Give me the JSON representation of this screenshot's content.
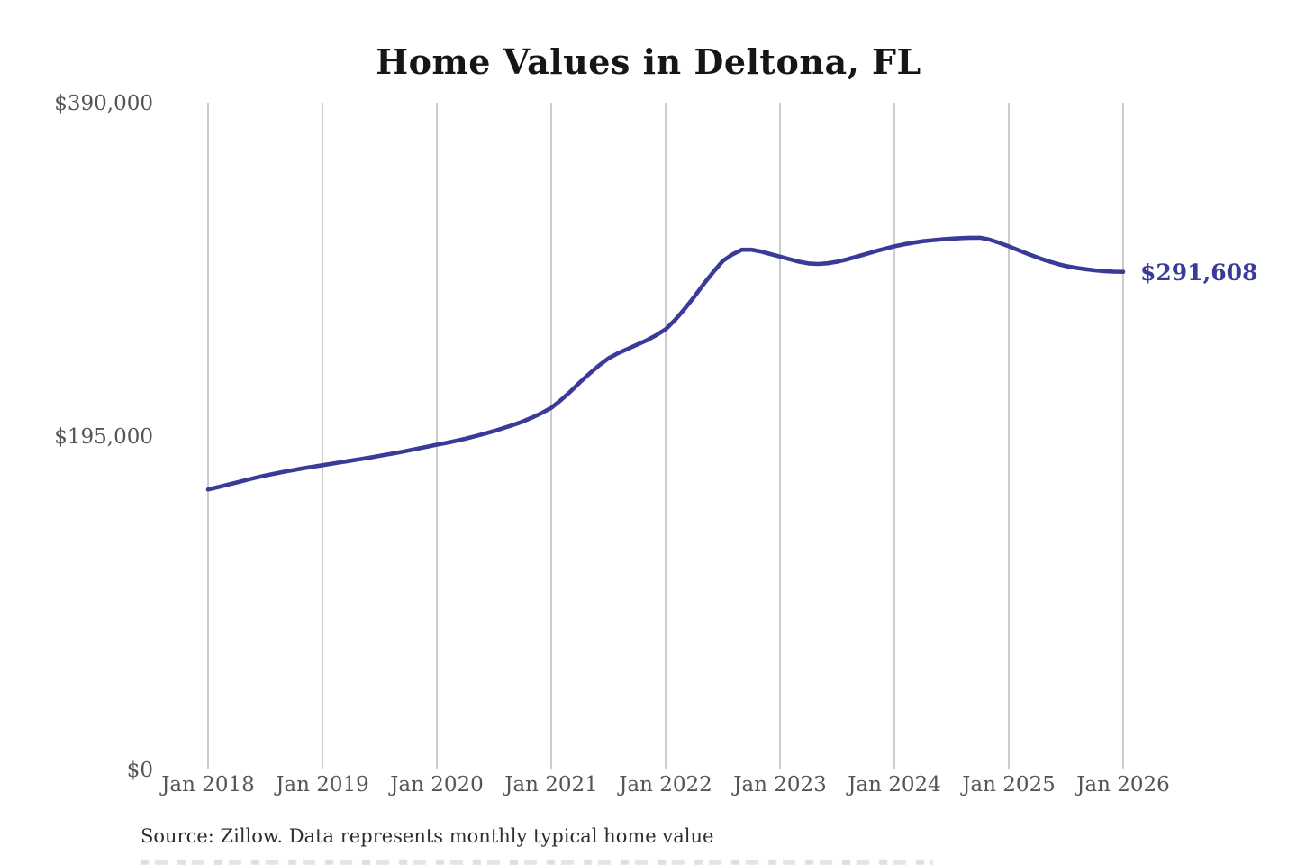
{
  "colors": {
    "line": "#3a3a99",
    "end_label": "#3a3a99",
    "gridline": "#cccccc",
    "axis_text": "#555555",
    "title_text": "#161616",
    "source_text": "#2e2e2e"
  },
  "chart_data": {
    "type": "line",
    "title": "Home Values in Deltona, FL",
    "xlabel": "",
    "ylabel": "",
    "ylim": [
      0,
      390000
    ],
    "grid": "vertical-yearly",
    "legend": "none",
    "x_unit": "month",
    "x_range": [
      "Jan 2018",
      "Jan 2026"
    ],
    "x_tick_labels": [
      "Jan 2018",
      "Jan 2019",
      "Jan 2020",
      "Jan 2021",
      "Jan 2022",
      "Jan 2023",
      "Jan 2024",
      "Jan 2025",
      "Jan 2026"
    ],
    "y_ticks": [
      {
        "label": "$390,000",
        "value": 390000
      },
      {
        "label": "$195,000",
        "value": 195000
      },
      {
        "label": "$0",
        "value": 0
      }
    ],
    "end_label": "$291,608",
    "end_value": 291608,
    "source": "Source: Zillow. Data represents monthly typical home value",
    "series": [
      {
        "name": "Typical home value",
        "values": [
          164300,
          165600,
          167000,
          168400,
          169800,
          171200,
          172500,
          173600,
          174700,
          175700,
          176700,
          177600,
          178500,
          179400,
          180300,
          181200,
          182100,
          183000,
          184000,
          185000,
          186000,
          187100,
          188200,
          189300,
          190500,
          191600,
          192800,
          194000,
          195400,
          196900,
          198500,
          200200,
          202000,
          204000,
          206400,
          209000,
          212000,
          216500,
          221500,
          227000,
          232000,
          236800,
          241000,
          244000,
          246500,
          249000,
          251500,
          254500,
          258000,
          263500,
          270000,
          277000,
          284500,
          291500,
          298000,
          301800,
          304500,
          304500,
          303500,
          302000,
          300500,
          299000,
          297500,
          296500,
          296200,
          296600,
          297500,
          298800,
          300400,
          302000,
          303600,
          305100,
          306500,
          307700,
          308700,
          309500,
          310100,
          310600,
          311000,
          311300,
          311500,
          311500,
          310400,
          308600,
          306500,
          304300,
          302100,
          300000,
          298100,
          296400,
          295000,
          294000,
          293200,
          292500,
          292000,
          291700,
          291608
        ]
      }
    ]
  }
}
